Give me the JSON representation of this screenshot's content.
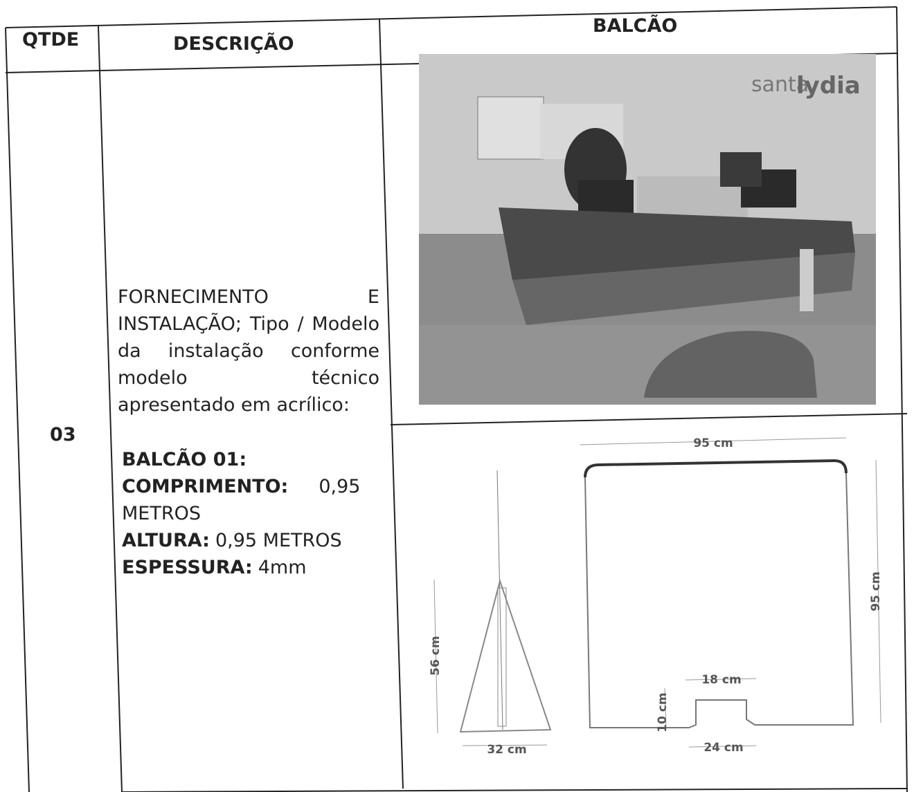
{
  "header": {
    "qtde": "QTDE",
    "descricao": "DESCRIÇÃO",
    "balcao": "BALCÃO"
  },
  "row": {
    "qtde": "03",
    "description": "FORNECIMENTO E INSTALAÇÃO; Tipo / Modelo da instalação conforme modelo técnico apresentado em acrílico:",
    "spec_title": "BALCÃO 01:",
    "specs": [
      {
        "label": "COMPRIMENTO:",
        "value": "0,95 METROS"
      },
      {
        "label": "ALTURA:",
        "value": "0,95 METROS"
      },
      {
        "label": "ESPESSURA:",
        "value": "4mm"
      }
    ],
    "photo_logo": {
      "brand_a": "santa",
      "brand_b": "lydia"
    },
    "drawing": {
      "width_top": "95 cm",
      "height_right": "95 cm",
      "notch_width": "18 cm",
      "notch_height": "10 cm",
      "notch_base": "24 cm",
      "side_height": "56 cm",
      "side_base": "32 cm"
    }
  }
}
